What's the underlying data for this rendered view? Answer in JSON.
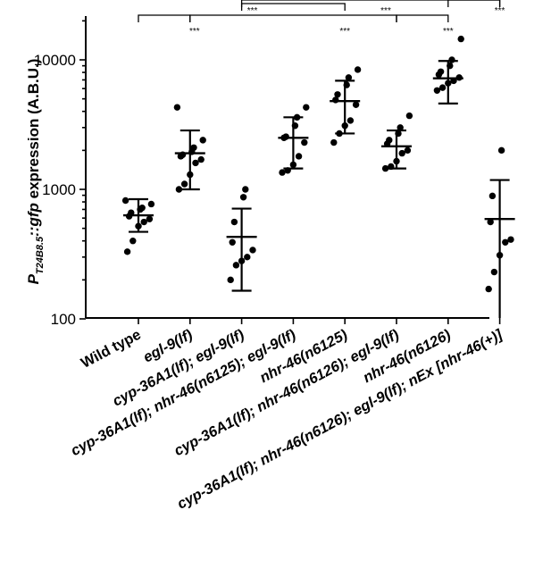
{
  "chart_data": {
    "type": "scatter",
    "ylabel": {
      "prefix": "P",
      "subscript": "T24B8.5",
      "gene": "::gfp",
      "suffix": " expression (A.B.U.)"
    },
    "yscale": "log",
    "ylim": [
      100,
      20000
    ],
    "yticks": [
      100,
      1000,
      10000
    ],
    "ytick_labels": [
      "100",
      "1000",
      "10000"
    ],
    "categories": [
      "Wild type",
      "egl-9(lf)",
      "cyp-36A1(lf); egl-9(lf)",
      "cyp-36A1(lf); nhr-46(n6125); egl-9(lf)",
      "nhr-46(n6125)",
      "cyp-36A1(lf); nhr-46(n6126); egl-9(lf)",
      "nhr-46(n6126)",
      "cyp-36A1(lf); nhr-46(n6126); egl-9(lf); nEx [nhr-46(+)]"
    ],
    "category_italic": [
      false,
      true,
      true,
      true,
      true,
      true,
      true,
      true
    ],
    "groups": [
      {
        "mean": 630,
        "sd_low": 470,
        "sd_high": 840,
        "points": [
          330,
          400,
          520,
          560,
          590,
          620,
          660,
          700,
          720,
          770,
          820
        ]
      },
      {
        "mean": 1900,
        "sd_low": 1000,
        "sd_high": 2850,
        "points": [
          1000,
          1100,
          1300,
          1600,
          1700,
          1800,
          1850,
          1950,
          2100,
          2400,
          4300
        ]
      },
      {
        "mean": 430,
        "sd_low": 165,
        "sd_high": 710,
        "points": [
          200,
          260,
          280,
          300,
          340,
          390,
          560,
          870,
          1000
        ]
      },
      {
        "mean": 2500,
        "sd_low": 1450,
        "sd_high": 3600,
        "points": [
          1350,
          1400,
          1550,
          1800,
          2300,
          2500,
          2550,
          3100,
          3600,
          4300
        ]
      },
      {
        "mean": 4800,
        "sd_low": 2700,
        "sd_high": 6900,
        "points": [
          2300,
          2700,
          3100,
          3400,
          4500,
          4900,
          5400,
          6400,
          7300,
          8400
        ]
      },
      {
        "mean": 2150,
        "sd_low": 1450,
        "sd_high": 2850,
        "points": [
          1450,
          1500,
          1650,
          1900,
          2000,
          2250,
          2400,
          2700,
          3000,
          3700
        ]
      },
      {
        "mean": 7200,
        "sd_low": 4600,
        "sd_high": 9800,
        "points": [
          5800,
          6100,
          6600,
          6900,
          7300,
          7700,
          8100,
          9000,
          10000,
          14500
        ]
      },
      {
        "mean": 590,
        "sd_low": 100,
        "sd_high": 1180,
        "points": [
          170,
          230,
          310,
          390,
          410,
          560,
          890,
          2000
        ]
      }
    ],
    "comparisons": [
      {
        "from": 0,
        "to": 1,
        "label": "***"
      },
      {
        "from": 2,
        "to": 4,
        "label": "***"
      },
      {
        "from": 1,
        "to": 5,
        "label": "***"
      },
      {
        "from": 5,
        "to": 6,
        "label": "***"
      },
      {
        "from": 2,
        "to": 7,
        "label": "***"
      },
      {
        "from": 6,
        "to": 7,
        "label": "***"
      }
    ],
    "grid": false,
    "legend": "none"
  }
}
